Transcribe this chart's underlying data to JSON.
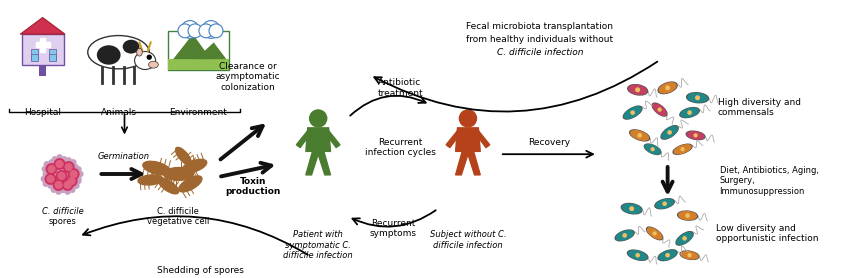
{
  "bg_color": "#ffffff",
  "green_person_color": "#4a7c2f",
  "orange_person_color": "#b5421a",
  "spore_color": "#d03060",
  "spore_inner_color": "#e06080",
  "spore_outer_color": "#c8a0c0",
  "veg_color": "#a06830",
  "labels": {
    "hospital": "Hospital",
    "animals": "Animals",
    "environment": "Environment",
    "cdiff_spores": "C. difficile\nspores",
    "germination": "Germination",
    "cdiff_veg": "C. difficile\nvegetative cell",
    "toxin": "Toxin\nproduction",
    "clearance": "Clearance or\nasymptomatic\ncolonization",
    "patient": "Patient with\nsymptomatic C.\ndifficile infection",
    "antibiotic": "Antibiotic\ntreatment",
    "recurrent_cycles": "Recurrent\ninfection cycles",
    "recurrent_symptoms": "Recurrent\nsymptoms",
    "subject": "Subject without C.\ndifficile infection",
    "recovery": "Recovery",
    "fecal_line1": "Fecal microbiota transplantation",
    "fecal_line2": "from healthy individuals without",
    "fecal_line3": "C. difficile infection",
    "shedding": "Shedding of spores",
    "high_diversity": "High diversity and\ncommensals",
    "diet": "Diet, Antibiotics, Aging,\nSurgery,\nImmunosuppression",
    "low_diversity": "Low diversity and\nopportunistic infection"
  },
  "bact_colors_high": [
    "#c44060",
    "#d4802a",
    "#208888",
    "#208888",
    "#c44060",
    "#208888",
    "#d4802a",
    "#208888",
    "#c44060",
    "#208888",
    "#d4802a"
  ],
  "bact_colors_low": [
    "#208888",
    "#d4802a",
    "#208888",
    "#208888",
    "#d4802a",
    "#208888",
    "#208888",
    "#d4802a",
    "#208888"
  ]
}
